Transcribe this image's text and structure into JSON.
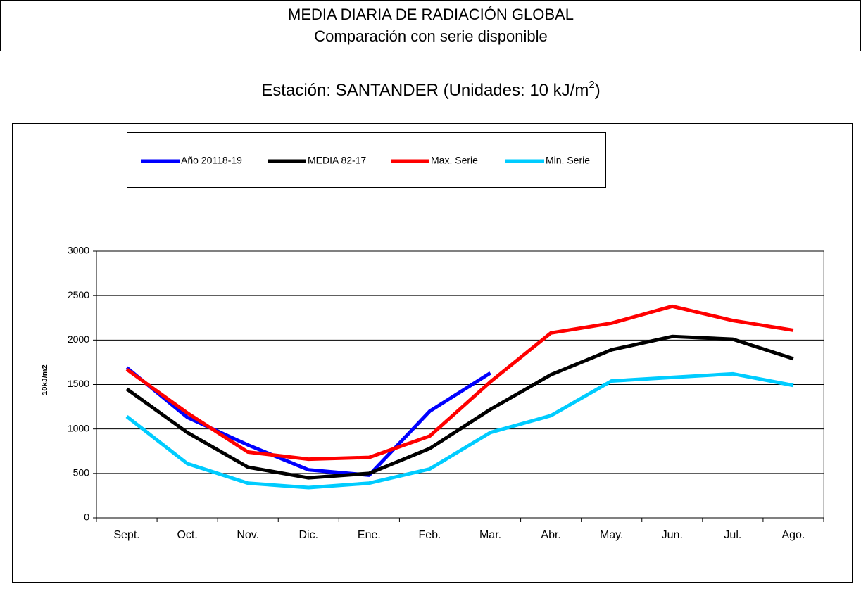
{
  "chart_data": {
    "type": "line",
    "title": "MEDIA DIARIA DE RADIACIÓN GLOBAL",
    "subtitle": "Comparación con serie disponible",
    "station": {
      "text": "Estación: SANTANDER (Unidades: 10 kJ/m",
      "sup": "2",
      "close": ")"
    },
    "ylabel": "10kJ/m2",
    "categories": [
      "Sept.",
      "Oct.",
      "Nov.",
      "Dic.",
      "Ene.",
      "Feb.",
      "Mar.",
      "Abr.",
      "May.",
      "Jun.",
      "Jul.",
      "Ago."
    ],
    "series": [
      {
        "name": "Año 20118-19",
        "color": "#0000ff",
        "values": [
          1690,
          1130,
          820,
          540,
          480,
          1200,
          1630,
          null,
          null,
          null,
          null,
          null
        ]
      },
      {
        "name": "MEDIA 82-17",
        "color": "#000000",
        "values": [
          1450,
          960,
          570,
          450,
          500,
          780,
          1220,
          1610,
          1890,
          2040,
          2010,
          1790
        ]
      },
      {
        "name": "Max. Serie",
        "color": "#ff0000",
        "values": [
          1670,
          1180,
          740,
          660,
          680,
          920,
          1530,
          2080,
          2190,
          2380,
          2220,
          2110
        ]
      },
      {
        "name": "Min. Serie",
        "color": "#00ccff",
        "values": [
          1140,
          610,
          390,
          340,
          390,
          550,
          960,
          1150,
          1540,
          1580,
          1620,
          1490
        ]
      }
    ],
    "ylim": [
      0,
      3000
    ],
    "yticks": [
      0,
      500,
      1000,
      1500,
      2000,
      2500,
      3000
    ],
    "grid": true
  }
}
